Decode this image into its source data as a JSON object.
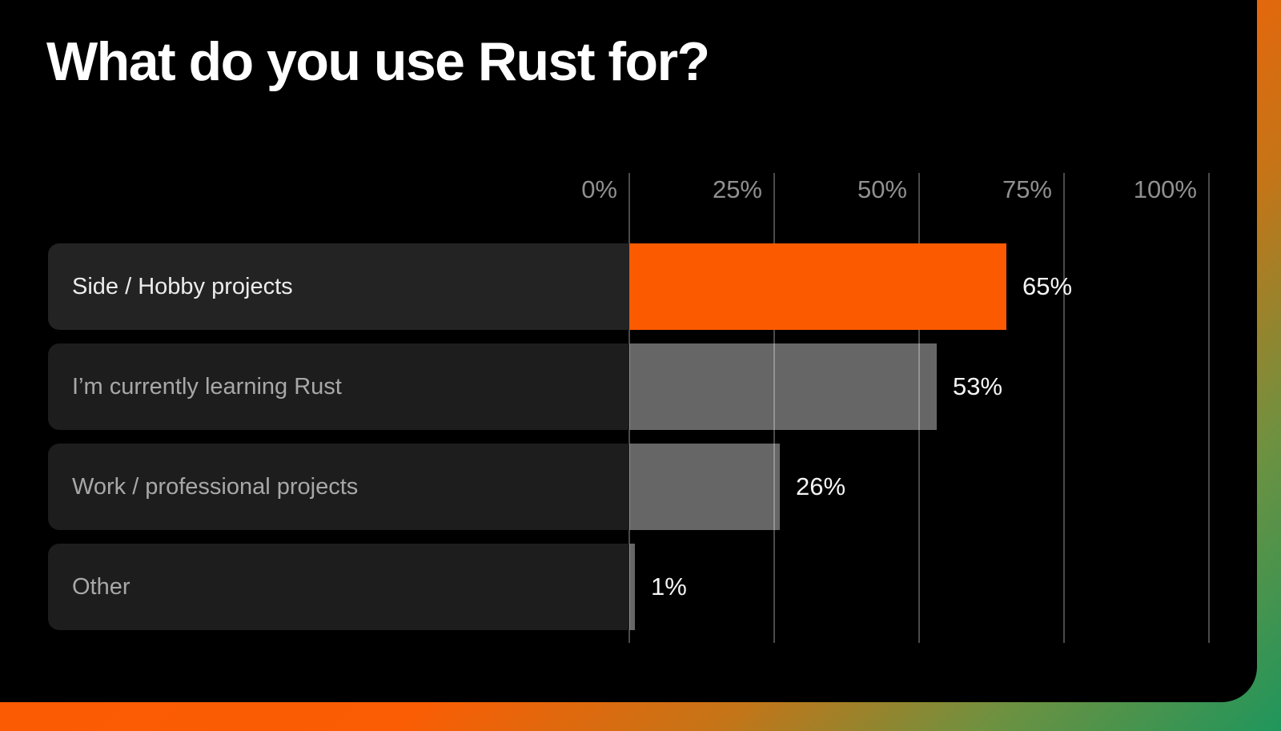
{
  "chart_data": {
    "type": "bar",
    "orientation": "horizontal",
    "title": "What do you use Rust for?",
    "categories": [
      "Side / Hobby projects",
      "I’m currently learning Rust",
      "Work / professional projects",
      "Other"
    ],
    "values": [
      65,
      53,
      26,
      1
    ],
    "value_labels": [
      "65%",
      "53%",
      "26%",
      "1%"
    ],
    "highlight_index": 0,
    "axis": {
      "ticks": [
        "0%",
        "25%",
        "50%",
        "75%",
        "100%"
      ],
      "range": [
        0,
        100
      ],
      "grid": true,
      "tick_position": "top"
    },
    "colors": {
      "highlight_bar": "#fc5a00",
      "default_bar": "rgba(255,255,255,0.40)",
      "background": "#000000",
      "gridline": "#4a4a4a",
      "frame_gradient": [
        "#fd5702",
        "#fa5d04",
        "#c47518",
        "#6f9140",
        "#1f965c"
      ]
    }
  }
}
